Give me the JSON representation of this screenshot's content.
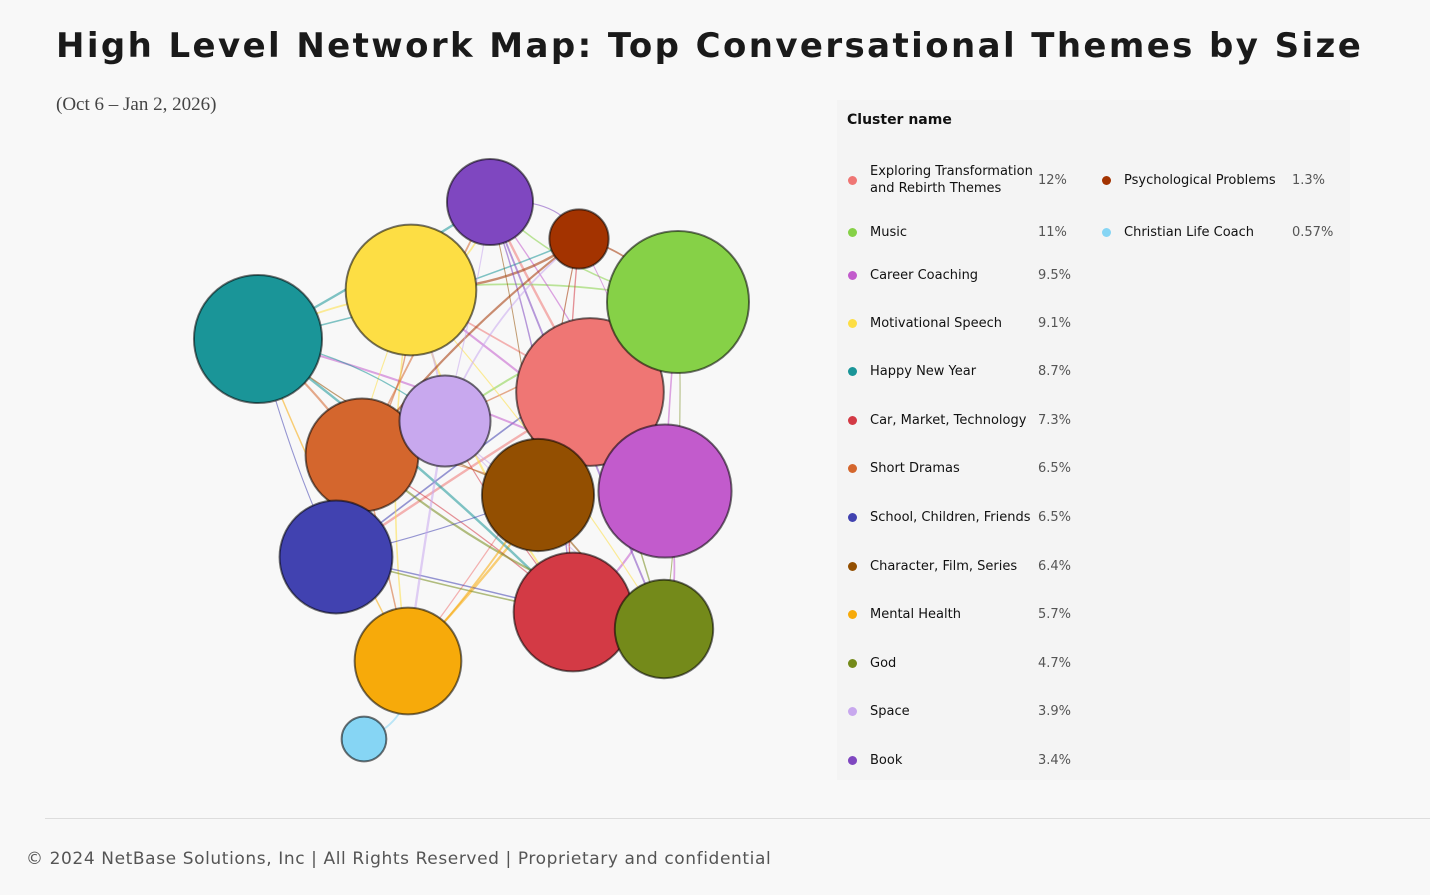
{
  "chart_data": {
    "type": "network",
    "title": "High Level Network Map: Top Conversational Themes by Size",
    "subtitle": "(Oct 6 – Jan 2, 2026)",
    "legend_title": "Cluster name",
    "categories": [
      "Exploring Transformation and Rebirth Themes",
      "Music",
      "Career Coaching",
      "Motivational Speech",
      "Happy New Year",
      "Car, Market, Technology",
      "Short Dramas",
      "School, Children, Friends",
      "Character, Film, Series",
      "Mental Health",
      "God",
      "Space",
      "Book",
      "Psychological Problems",
      "Christian Life Coach"
    ],
    "values": [
      12,
      11,
      9.5,
      9.1,
      8.7,
      7.3,
      6.5,
      6.5,
      6.4,
      5.7,
      4.7,
      3.9,
      3.4,
      1.3,
      0.57
    ],
    "value_labels": [
      "12%",
      "11%",
      "9.5%",
      "9.1%",
      "8.7%",
      "7.3%",
      "6.5%",
      "6.5%",
      "6.4%",
      "5.7%",
      "4.7%",
      "3.9%",
      "3.4%",
      "1.3%",
      "0.57%"
    ],
    "colors": [
      "#ef7674",
      "#86d147",
      "#c25bcc",
      "#fdde44",
      "#1a9598",
      "#d33a45",
      "#d4662d",
      "#4142b0",
      "#934f01",
      "#f7aa0a",
      "#748a1a",
      "#c8a8ee",
      "#7f47c0",
      "#a33300",
      "#86d5f4"
    ]
  },
  "footer": "© 2024 NetBase Solutions, Inc | All Rights Reserved | Proprietary and confidential"
}
